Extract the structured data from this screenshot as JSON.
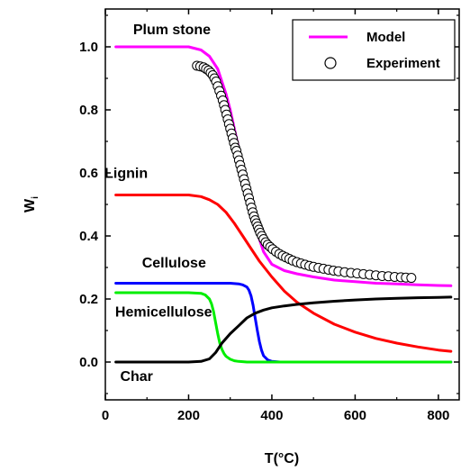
{
  "chart_data": {
    "type": "line",
    "xlabel": "T(°C)",
    "ylabel_main": "W",
    "ylabel_sub": "i",
    "xlim": [
      0,
      850
    ],
    "ylim": [
      -0.12,
      1.12
    ],
    "xticks": [
      0,
      200,
      400,
      600,
      800
    ],
    "yticks": [
      0.0,
      0.2,
      0.4,
      0.6,
      0.8,
      1.0
    ],
    "ytick_labels": [
      "0.0",
      "0.2",
      "0.4",
      "0.6",
      "0.8",
      "1.0"
    ],
    "legend_position": "top-right",
    "legend": [
      {
        "label": "Model",
        "kind": "line",
        "color": "#ff00ff"
      },
      {
        "label": "Experiment",
        "kind": "marker",
        "color": "#000000"
      }
    ],
    "annotations": [
      {
        "text": "Plum stone",
        "x": 160,
        "y": 1.04
      },
      {
        "text": "Lignin",
        "x": 50,
        "y": 0.585
      },
      {
        "text": "Cellulose",
        "x": 165,
        "y": 0.3
      },
      {
        "text": "Hemicellulose",
        "x": 140,
        "y": 0.145
      },
      {
        "text": "Char",
        "x": 75,
        "y": -0.06
      }
    ],
    "series": [
      {
        "name": "Plum stone",
        "color": "#ff00ff",
        "x": [
          25,
          200,
          230,
          250,
          270,
          290,
          300,
          310,
          320,
          330,
          340,
          350,
          360,
          370,
          380,
          400,
          430,
          460,
          500,
          550,
          600,
          650,
          700,
          750,
          800,
          830
        ],
        "y": [
          1.0,
          1.0,
          0.99,
          0.97,
          0.93,
          0.85,
          0.8,
          0.74,
          0.68,
          0.62,
          0.56,
          0.5,
          0.44,
          0.39,
          0.35,
          0.31,
          0.29,
          0.28,
          0.27,
          0.26,
          0.255,
          0.25,
          0.248,
          0.245,
          0.243,
          0.242
        ]
      },
      {
        "name": "Lignin",
        "color": "#ff0000",
        "x": [
          25,
          200,
          230,
          250,
          270,
          290,
          310,
          330,
          350,
          370,
          400,
          430,
          460,
          500,
          550,
          600,
          650,
          700,
          750,
          800,
          830
        ],
        "y": [
          0.53,
          0.53,
          0.525,
          0.515,
          0.5,
          0.475,
          0.44,
          0.4,
          0.36,
          0.32,
          0.27,
          0.225,
          0.19,
          0.155,
          0.12,
          0.095,
          0.075,
          0.06,
          0.048,
          0.038,
          0.034
        ]
      },
      {
        "name": "Cellulose",
        "color": "#0000ff",
        "x": [
          25,
          200,
          300,
          320,
          330,
          340,
          345,
          350,
          355,
          360,
          365,
          370,
          375,
          380,
          390,
          400,
          420,
          500,
          600,
          830
        ],
        "y": [
          0.25,
          0.25,
          0.25,
          0.248,
          0.245,
          0.238,
          0.228,
          0.21,
          0.18,
          0.14,
          0.1,
          0.065,
          0.038,
          0.02,
          0.007,
          0.002,
          0.0,
          0.0,
          0.0,
          0.0
        ]
      },
      {
        "name": "Hemicellulose",
        "color": "#00ee00",
        "x": [
          25,
          200,
          230,
          240,
          250,
          255,
          260,
          265,
          270,
          275,
          280,
          285,
          290,
          300,
          310,
          320,
          340,
          400,
          500,
          830
        ],
        "y": [
          0.22,
          0.22,
          0.218,
          0.213,
          0.2,
          0.185,
          0.16,
          0.125,
          0.09,
          0.06,
          0.04,
          0.027,
          0.018,
          0.009,
          0.004,
          0.002,
          0.0,
          0.0,
          0.0,
          0.0
        ]
      },
      {
        "name": "Char",
        "color": "#000000",
        "x": [
          25,
          200,
          230,
          250,
          265,
          280,
          300,
          320,
          340,
          360,
          380,
          400,
          430,
          460,
          500,
          550,
          600,
          650,
          700,
          750,
          800,
          830
        ],
        "y": [
          0.0,
          0.0,
          0.002,
          0.01,
          0.03,
          0.06,
          0.09,
          0.115,
          0.14,
          0.155,
          0.165,
          0.172,
          0.178,
          0.183,
          0.188,
          0.193,
          0.197,
          0.2,
          0.202,
          0.204,
          0.205,
          0.206
        ]
      },
      {
        "name": "Experiment",
        "kind": "markers",
        "x": [
          220,
          228,
          236,
          242,
          248,
          253,
          258,
          262,
          266,
          270,
          274,
          278,
          282,
          285,
          288,
          291,
          294,
          297,
          300,
          303,
          306,
          309,
          312,
          315,
          318,
          321,
          324,
          327,
          330,
          333,
          336,
          339,
          342,
          345,
          348,
          351,
          354,
          357,
          360,
          363,
          366,
          369,
          372,
          376,
          380,
          385,
          390,
          396,
          402,
          410,
          418,
          426,
          434,
          442,
          450,
          460,
          470,
          480,
          490,
          500,
          512,
          524,
          536,
          548,
          560,
          575,
          590,
          605,
          620,
          635,
          650,
          665,
          680,
          695,
          710,
          722,
          735
        ],
        "y": [
          0.94,
          0.938,
          0.935,
          0.93,
          0.925,
          0.918,
          0.91,
          0.9,
          0.89,
          0.875,
          0.86,
          0.845,
          0.83,
          0.815,
          0.8,
          0.785,
          0.77,
          0.755,
          0.74,
          0.725,
          0.71,
          0.695,
          0.68,
          0.67,
          0.655,
          0.64,
          0.625,
          0.61,
          0.595,
          0.58,
          0.565,
          0.55,
          0.535,
          0.52,
          0.505,
          0.49,
          0.475,
          0.462,
          0.45,
          0.44,
          0.43,
          0.42,
          0.41,
          0.4,
          0.39,
          0.38,
          0.372,
          0.365,
          0.358,
          0.35,
          0.343,
          0.337,
          0.332,
          0.327,
          0.322,
          0.317,
          0.313,
          0.309,
          0.305,
          0.302,
          0.299,
          0.296,
          0.293,
          0.29,
          0.288,
          0.285,
          0.283,
          0.281,
          0.279,
          0.277,
          0.275,
          0.273,
          0.272,
          0.27,
          0.269,
          0.268,
          0.267
        ]
      }
    ]
  }
}
